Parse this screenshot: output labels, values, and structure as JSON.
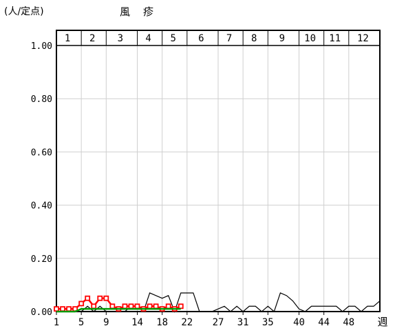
{
  "chart_data": {
    "type": "line",
    "title": "風　疹",
    "ylabel": "(人/定点)",
    "xlabel": "週",
    "ylim": [
      0,
      1.0
    ],
    "xlim": [
      1,
      53
    ],
    "y_ticks": [
      "1.00",
      "0.80",
      "0.60",
      "0.40",
      "0.20",
      "0.00"
    ],
    "y_tick_values": [
      1.0,
      0.8,
      0.6,
      0.4,
      0.2,
      0.0
    ],
    "x_ticks": [
      "1",
      "5",
      "9",
      "14",
      "18",
      "22",
      "27",
      "31",
      "35",
      "40",
      "44",
      "48"
    ],
    "x_tick_values": [
      1,
      5,
      9,
      14,
      18,
      22,
      27,
      31,
      35,
      40,
      44,
      48
    ],
    "months": [
      "1",
      "2",
      "3",
      "4",
      "5",
      "6",
      "7",
      "8",
      "9",
      "10",
      "11",
      "12"
    ],
    "grid": true,
    "series": [
      {
        "color": "#000000",
        "marker": "none",
        "x": [
          1,
          2,
          3,
          4,
          5,
          6,
          7,
          8,
          9,
          10,
          11,
          12,
          13,
          14,
          15,
          16,
          17,
          18,
          19,
          20,
          21,
          22,
          23,
          24,
          25,
          26,
          27,
          28,
          29,
          30,
          31,
          32,
          33,
          34,
          35,
          36,
          37,
          38,
          39,
          40,
          41,
          42,
          43,
          44,
          45,
          46,
          47,
          48,
          49,
          50,
          51,
          52,
          53
        ],
        "y": [
          0,
          0,
          0,
          0,
          0,
          0.02,
          0,
          0.02,
          0,
          0,
          0,
          0,
          0.02,
          0.02,
          0,
          0.07,
          0.06,
          0.05,
          0.06,
          0,
          0.07,
          0.07,
          0.07,
          0,
          0,
          0,
          0.01,
          0.02,
          0,
          0.02,
          0,
          0.02,
          0.02,
          0,
          0.02,
          0,
          0.07,
          0.06,
          0.04,
          0.01,
          0,
          0.02,
          0.02,
          0.02,
          0.02,
          0.02,
          0,
          0.02,
          0.02,
          0,
          0.02,
          0.02,
          0.04
        ]
      },
      {
        "color": "#ff0000",
        "marker": "open-square",
        "x": [
          1,
          2,
          3,
          4,
          5,
          6,
          7,
          8,
          9,
          10,
          11,
          12,
          13,
          14,
          15,
          16,
          17,
          18,
          19,
          20,
          21
        ],
        "y": [
          0.01,
          0.01,
          0.01,
          0.01,
          0.03,
          0.05,
          0.02,
          0.05,
          0.05,
          0.02,
          0.01,
          0.02,
          0.02,
          0.02,
          0.01,
          0.02,
          0.02,
          0.01,
          0.02,
          0.01,
          0.02
        ]
      },
      {
        "color": "#009900",
        "marker": "none",
        "x": [
          1,
          2,
          3,
          4,
          5,
          6,
          7,
          8,
          9,
          10,
          11,
          12,
          13,
          14,
          15,
          16,
          17,
          18,
          19,
          20,
          21
        ],
        "y": [
          0,
          0,
          0,
          0,
          0.01,
          0.01,
          0.01,
          0.01,
          0.01,
          0.01,
          0.01,
          0.01,
          0.01,
          0.01,
          0.01,
          0.01,
          0.01,
          0.01,
          0.01,
          0.01,
          0.01
        ]
      }
    ]
  }
}
